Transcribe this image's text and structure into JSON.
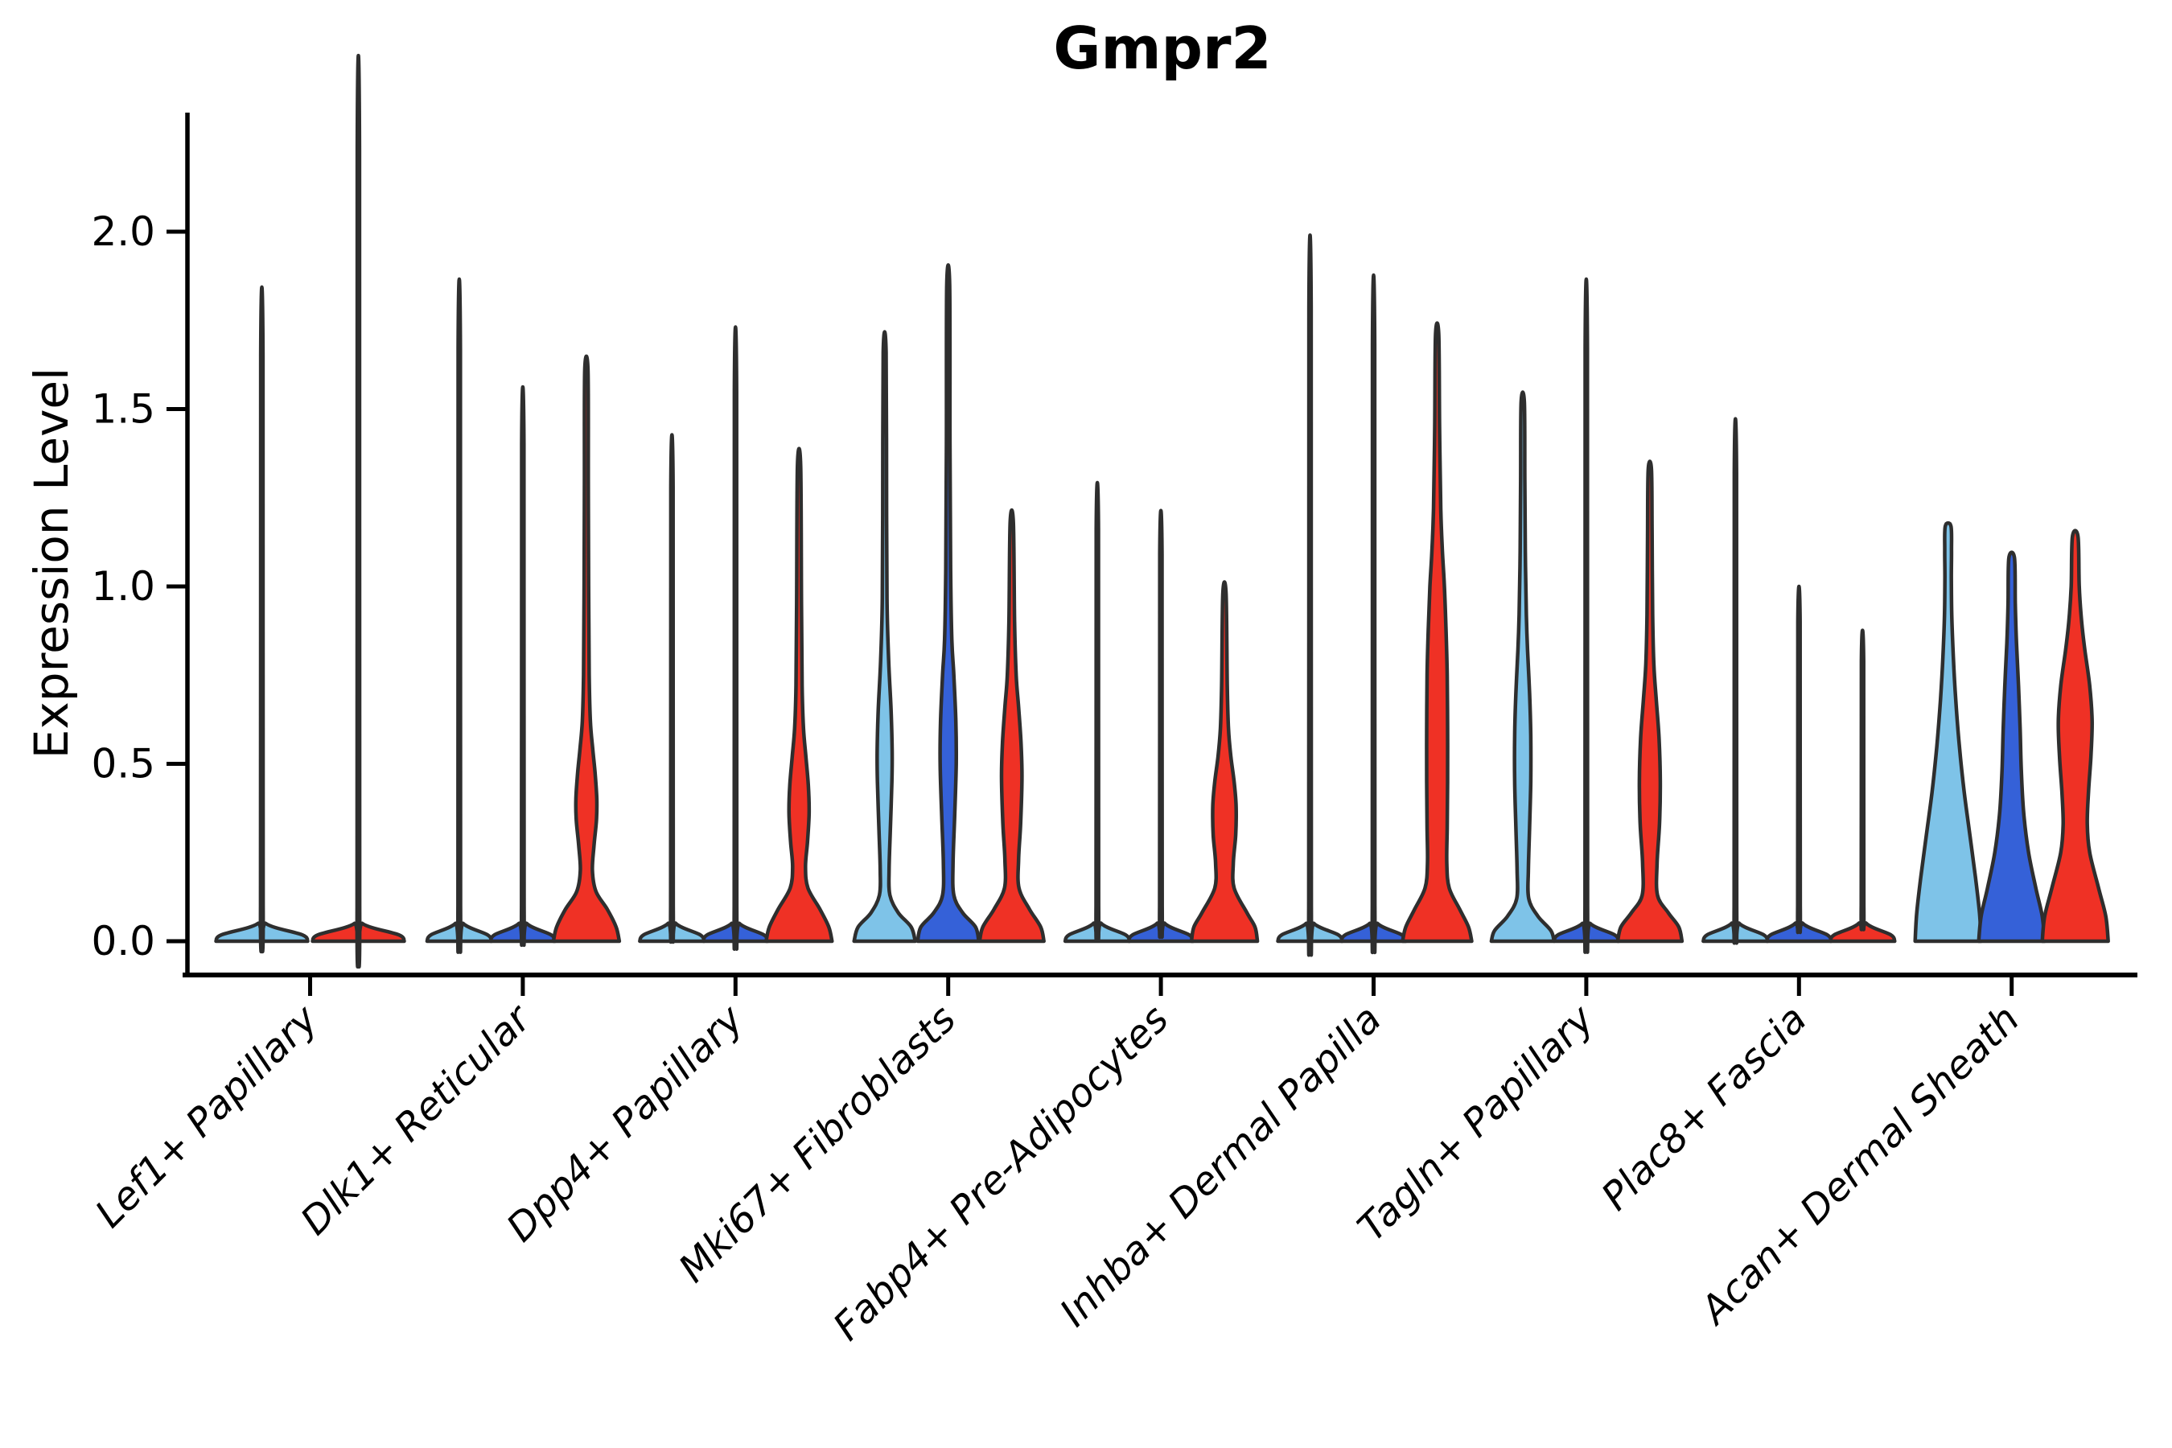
{
  "chart_data": {
    "type": "violin",
    "title": "Gmpr2",
    "ylabel": "Expression Level",
    "xlabel": "",
    "yticks": [
      "0.0",
      "0.5",
      "1.0",
      "1.5",
      "2.0"
    ],
    "ytick_values": [
      0.0,
      0.5,
      1.0,
      1.5,
      2.0
    ],
    "ylim": [
      -0.1,
      2.35
    ],
    "grid": false,
    "legend": "none",
    "palette": {
      "light_blue": "#7EC3E8",
      "dark_blue": "#3561D8",
      "red": "#EF3125",
      "outline": "#2E2E2E",
      "axis": "#000000"
    },
    "categories": [
      "Lef1+ Papillary",
      "Dlk1+ Reticular",
      "Dpp4+ Papillary",
      "Mki67+ Fibroblasts",
      "Fabp4+ Pre-Adipocytes",
      "Inhba+ Dermal Papilla",
      "Tagln+ Papillary",
      "Plac8+ Fascia",
      "Acan+ Dermal Sheath"
    ],
    "groups": [
      {
        "label": "Lef1+ Papillary",
        "violins": [
          {
            "split": "light_blue",
            "kind": "spike",
            "max": 1.65,
            "base_hw": 57,
            "dx": -60
          },
          {
            "split": "red",
            "kind": "spike",
            "max": 2.23,
            "base_hw": 57,
            "dx": 60
          }
        ]
      },
      {
        "label": "Dlk1+ Reticular",
        "violins": [
          {
            "split": "light_blue",
            "kind": "spike",
            "max": 1.67,
            "base_hw": 40,
            "dx": -79
          },
          {
            "split": "dark_blue",
            "kind": "spike",
            "max": 1.4,
            "base_hw": 40,
            "dx": 0
          },
          {
            "split": "red",
            "kind": "shape",
            "max": 1.61,
            "dx": 79,
            "profile": [
              [
                0,
                41
              ],
              [
                0.04,
                37
              ],
              [
                0.09,
                26
              ],
              [
                0.14,
                12
              ],
              [
                0.2,
                7.5
              ],
              [
                0.27,
                9.5
              ],
              [
                0.34,
                12.5
              ],
              [
                0.4,
                13
              ],
              [
                0.47,
                11
              ],
              [
                0.54,
                8
              ],
              [
                0.62,
                5
              ],
              [
                0.75,
                3.5
              ],
              [
                1.0,
                2.8
              ],
              [
                1.3,
                2.4
              ],
              [
                1.61,
                2
              ]
            ]
          }
        ]
      },
      {
        "label": "Dpp4+ Papillary",
        "violins": [
          {
            "split": "light_blue",
            "kind": "spike",
            "max": 1.28,
            "base_hw": 40,
            "dx": -79
          },
          {
            "split": "dark_blue",
            "kind": "spike",
            "max": 1.55,
            "base_hw": 40,
            "dx": 0
          },
          {
            "split": "red",
            "kind": "shape",
            "max": 1.34,
            "dx": 79,
            "profile": [
              [
                0,
                41
              ],
              [
                0.04,
                37
              ],
              [
                0.09,
                26
              ],
              [
                0.15,
                11
              ],
              [
                0.21,
                8
              ],
              [
                0.28,
                10.5
              ],
              [
                0.36,
                12.5
              ],
              [
                0.44,
                11.5
              ],
              [
                0.52,
                8.5
              ],
              [
                0.6,
                5.5
              ],
              [
                0.72,
                3.8
              ],
              [
                0.95,
                3
              ],
              [
                1.34,
                2
              ]
            ]
          }
        ]
      },
      {
        "label": "Mki67+ Fibroblasts",
        "violins": [
          {
            "split": "light_blue",
            "kind": "shape",
            "max": 1.66,
            "dx": -79,
            "profile": [
              [
                0,
                38
              ],
              [
                0.04,
                33
              ],
              [
                0.08,
                17
              ],
              [
                0.13,
                6.5
              ],
              [
                0.2,
                5.5
              ],
              [
                0.31,
                7
              ],
              [
                0.45,
                9
              ],
              [
                0.54,
                9.3
              ],
              [
                0.65,
                8
              ],
              [
                0.79,
                5
              ],
              [
                0.95,
                3
              ],
              [
                1.2,
                2.4
              ],
              [
                1.66,
                1.8
              ]
            ]
          },
          {
            "split": "dark_blue",
            "kind": "shape",
            "max": 1.85,
            "dx": 0,
            "profile": [
              [
                0,
                38
              ],
              [
                0.04,
                34
              ],
              [
                0.08,
                18
              ],
              [
                0.13,
                7
              ],
              [
                0.22,
                6
              ],
              [
                0.35,
                8
              ],
              [
                0.5,
                10
              ],
              [
                0.62,
                9.5
              ],
              [
                0.75,
                7
              ],
              [
                0.85,
                4.5
              ],
              [
                1.05,
                3
              ],
              [
                1.4,
                2.2
              ],
              [
                1.85,
                1.8
              ]
            ]
          },
          {
            "split": "red",
            "kind": "shape",
            "max": 1.18,
            "dx": 79,
            "profile": [
              [
                0,
                40
              ],
              [
                0.04,
                36
              ],
              [
                0.09,
                22
              ],
              [
                0.15,
                9
              ],
              [
                0.23,
                8.5
              ],
              [
                0.33,
                11
              ],
              [
                0.46,
                12.7
              ],
              [
                0.56,
                11.5
              ],
              [
                0.66,
                8.5
              ],
              [
                0.75,
                5.5
              ],
              [
                0.9,
                3.5
              ],
              [
                1.18,
                2
              ]
            ]
          }
        ]
      },
      {
        "label": "Fabp4+ Pre-Adipocytes",
        "violins": [
          {
            "split": "light_blue",
            "kind": "spike",
            "max": 1.16,
            "base_hw": 40,
            "dx": -79
          },
          {
            "split": "dark_blue",
            "kind": "spike",
            "max": 1.09,
            "base_hw": 40,
            "dx": 0
          },
          {
            "split": "red",
            "kind": "shape",
            "max": 0.98,
            "dx": 79,
            "profile": [
              [
                0,
                41
              ],
              [
                0.04,
                38
              ],
              [
                0.08,
                28
              ],
              [
                0.15,
                12
              ],
              [
                0.22,
                11
              ],
              [
                0.3,
                14
              ],
              [
                0.38,
                14.5
              ],
              [
                0.45,
                12
              ],
              [
                0.52,
                8
              ],
              [
                0.6,
                5
              ],
              [
                0.72,
                3.5
              ],
              [
                0.98,
                2
              ]
            ]
          }
        ]
      },
      {
        "label": "Inhba+ Dermal Papilla",
        "violins": [
          {
            "split": "light_blue",
            "kind": "spike",
            "max": 1.78,
            "base_hw": 40,
            "dx": -79
          },
          {
            "split": "dark_blue",
            "kind": "spike",
            "max": 1.68,
            "base_hw": 40,
            "dx": 0
          },
          {
            "split": "red",
            "kind": "shape",
            "max": 1.71,
            "dx": 79,
            "profile": [
              [
                0,
                43
              ],
              [
                0.04,
                39
              ],
              [
                0.09,
                28
              ],
              [
                0.15,
                15
              ],
              [
                0.22,
                12
              ],
              [
                0.32,
                12.5
              ],
              [
                0.45,
                13
              ],
              [
                0.6,
                13
              ],
              [
                0.75,
                12.5
              ],
              [
                0.88,
                11
              ],
              [
                1.0,
                9
              ],
              [
                1.1,
                6.5
              ],
              [
                1.22,
                4.5
              ],
              [
                1.45,
                3
              ],
              [
                1.71,
                2
              ]
            ]
          }
        ]
      },
      {
        "label": "Tagln+ Papillary",
        "violins": [
          {
            "split": "light_blue",
            "kind": "shape",
            "max": 1.52,
            "dx": -79,
            "profile": [
              [
                0,
                39
              ],
              [
                0.03,
                35
              ],
              [
                0.07,
                19
              ],
              [
                0.12,
                7.5
              ],
              [
                0.2,
                7
              ],
              [
                0.32,
                8.5
              ],
              [
                0.45,
                10
              ],
              [
                0.58,
                10
              ],
              [
                0.7,
                8.5
              ],
              [
                0.82,
                6
              ],
              [
                0.92,
                4.5
              ],
              [
                1.1,
                3.2
              ],
              [
                1.3,
                2.6
              ],
              [
                1.52,
                2
              ]
            ]
          },
          {
            "split": "dark_blue",
            "kind": "spike",
            "max": 1.67,
            "base_hw": 40,
            "dx": 0
          },
          {
            "split": "red",
            "kind": "shape",
            "max": 1.33,
            "dx": 79,
            "profile": [
              [
                0,
                40
              ],
              [
                0.04,
                36
              ],
              [
                0.08,
                23
              ],
              [
                0.13,
                9.5
              ],
              [
                0.22,
                9
              ],
              [
                0.33,
                12
              ],
              [
                0.45,
                13
              ],
              [
                0.57,
                11.5
              ],
              [
                0.68,
                8
              ],
              [
                0.78,
                5
              ],
              [
                0.92,
                3.5
              ],
              [
                1.15,
                2.8
              ],
              [
                1.33,
                2
              ]
            ]
          }
        ]
      },
      {
        "label": "Plac8+ Fascia",
        "violins": [
          {
            "split": "light_blue",
            "kind": "spike",
            "max": 1.32,
            "base_hw": 40,
            "dx": -79
          },
          {
            "split": "dark_blue",
            "kind": "spike",
            "max": 0.9,
            "base_hw": 40,
            "dx": 0
          },
          {
            "split": "red",
            "kind": "spike",
            "max": 0.79,
            "base_hw": 40,
            "dx": 79
          }
        ]
      },
      {
        "label": "Acan+ Dermal Sheath",
        "violins": [
          {
            "split": "light_blue",
            "kind": "shape",
            "max": 1.17,
            "dx": -79,
            "profile": [
              [
                0,
                41
              ],
              [
                0.08,
                39
              ],
              [
                0.18,
                34
              ],
              [
                0.3,
                27
              ],
              [
                0.42,
                20
              ],
              [
                0.55,
                14
              ],
              [
                0.68,
                9.5
              ],
              [
                0.8,
                6.5
              ],
              [
                0.92,
                4.5
              ],
              [
                1.02,
                4
              ],
              [
                1.1,
                4.2
              ],
              [
                1.17,
                3.5
              ]
            ]
          },
          {
            "split": "dark_blue",
            "kind": "shape",
            "max": 1.08,
            "dx": 0,
            "profile": [
              [
                0,
                41
              ],
              [
                0.07,
                38
              ],
              [
                0.15,
                30
              ],
              [
                0.25,
                21
              ],
              [
                0.36,
                15
              ],
              [
                0.48,
                12
              ],
              [
                0.6,
                10.5
              ],
              [
                0.72,
                8.5
              ],
              [
                0.84,
                6
              ],
              [
                0.95,
                4.5
              ],
              [
                1.08,
                3.5
              ]
            ]
          },
          {
            "split": "red",
            "kind": "shape",
            "max": 1.14,
            "dx": 79,
            "profile": [
              [
                0,
                41
              ],
              [
                0.07,
                38
              ],
              [
                0.15,
                29
              ],
              [
                0.25,
                18
              ],
              [
                0.33,
                15
              ],
              [
                0.42,
                16.5
              ],
              [
                0.52,
                19.5
              ],
              [
                0.62,
                21
              ],
              [
                0.72,
                18
              ],
              [
                0.82,
                12
              ],
              [
                0.9,
                8
              ],
              [
                1.0,
                5
              ],
              [
                1.14,
                3.5
              ]
            ]
          }
        ]
      }
    ]
  }
}
